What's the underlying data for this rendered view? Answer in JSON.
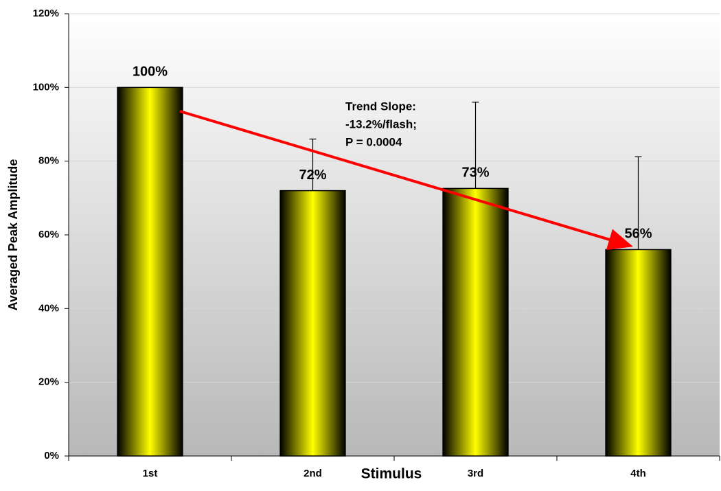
{
  "chart_data": {
    "type": "bar",
    "x_label": "Stimulus",
    "y_label": "Averaged Peak Amplitude",
    "categories": [
      "1st",
      "2nd",
      "3rd",
      "4th"
    ],
    "values": [
      100,
      72,
      72.6,
      56
    ],
    "value_labels": [
      "100%",
      "72%",
      "73%",
      "56%"
    ],
    "errors": [
      null,
      14,
      23.4,
      25.2
    ],
    "color": "#ffff00",
    "ylim": [
      0,
      120
    ],
    "yticks": [
      {
        "value": 0,
        "label": "0%"
      },
      {
        "value": 20,
        "label": "20%"
      },
      {
        "value": 40,
        "label": "40%"
      },
      {
        "value": 60,
        "label": "60%"
      },
      {
        "value": 80,
        "label": "80%"
      },
      {
        "value": 100,
        "label": "100%"
      },
      {
        "value": 120,
        "label": "120%"
      }
    ],
    "grid": true,
    "annotations": [
      "Trend Slope:",
      "-13.2%/flash;",
      "P = 0.0004"
    ]
  }
}
